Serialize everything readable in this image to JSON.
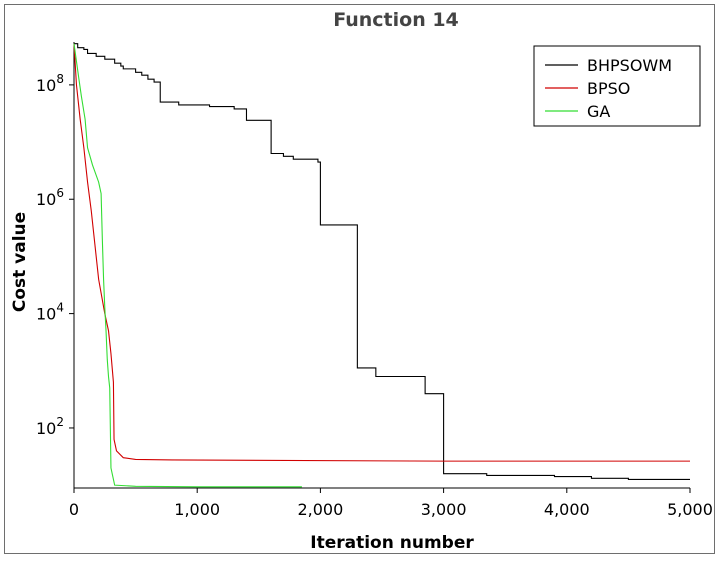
{
  "chart_data": {
    "type": "line",
    "title": "Function 14",
    "xlabel": "Iteration number",
    "ylabel": "Cost value",
    "xlim": [
      0,
      5000
    ],
    "ylim_log10": [
      0.95,
      8.75
    ],
    "yscale": "log",
    "grid": false,
    "legend_position": "top-right",
    "x_ticks": [
      {
        "value": 0,
        "label": "0"
      },
      {
        "value": 1000,
        "label": "1,000"
      },
      {
        "value": 2000,
        "label": "2,000"
      },
      {
        "value": 3000,
        "label": "3,000"
      },
      {
        "value": 4000,
        "label": "4,000"
      },
      {
        "value": 5000,
        "label": "5,000"
      }
    ],
    "y_ticks": [
      {
        "exponent": 2,
        "base": "10",
        "sup": "2"
      },
      {
        "exponent": 4,
        "base": "10",
        "sup": "4"
      },
      {
        "exponent": 6,
        "base": "10",
        "sup": "6"
      },
      {
        "exponent": 8,
        "base": "10",
        "sup": "8"
      }
    ],
    "series": [
      {
        "name": "BHPSOWM",
        "color": "#000000",
        "step": true,
        "points": [
          [
            0,
            8.72
          ],
          [
            30,
            8.65
          ],
          [
            80,
            8.62
          ],
          [
            110,
            8.55
          ],
          [
            180,
            8.5
          ],
          [
            250,
            8.45
          ],
          [
            330,
            8.38
          ],
          [
            380,
            8.33
          ],
          [
            400,
            8.28
          ],
          [
            500,
            8.22
          ],
          [
            550,
            8.17
          ],
          [
            600,
            8.1
          ],
          [
            650,
            8.05
          ],
          [
            700,
            7.7
          ],
          [
            850,
            7.65
          ],
          [
            1100,
            7.62
          ],
          [
            1300,
            7.58
          ],
          [
            1400,
            7.38
          ],
          [
            1550,
            7.38
          ],
          [
            1600,
            6.8
          ],
          [
            1700,
            6.75
          ],
          [
            1780,
            6.7
          ],
          [
            1980,
            6.65
          ],
          [
            2000,
            5.55
          ],
          [
            2300,
            5.55
          ],
          [
            2300,
            3.05
          ],
          [
            2450,
            2.9
          ],
          [
            2800,
            2.9
          ],
          [
            2850,
            2.6
          ],
          [
            3000,
            2.6
          ],
          [
            3000,
            1.2
          ],
          [
            3200,
            1.2
          ],
          [
            3350,
            1.17
          ],
          [
            3900,
            1.15
          ],
          [
            4200,
            1.12
          ],
          [
            4500,
            1.1
          ],
          [
            5000,
            1.1
          ]
        ]
      },
      {
        "name": "BPSO",
        "color": "#d10000",
        "step": false,
        "points": [
          [
            0,
            8.72
          ],
          [
            20,
            8.0
          ],
          [
            50,
            7.4
          ],
          [
            80,
            6.9
          ],
          [
            110,
            6.3
          ],
          [
            140,
            5.8
          ],
          [
            170,
            5.2
          ],
          [
            200,
            4.6
          ],
          [
            250,
            4.0
          ],
          [
            280,
            3.7
          ],
          [
            300,
            3.3
          ],
          [
            310,
            3.05
          ],
          [
            320,
            2.8
          ],
          [
            325,
            1.8
          ],
          [
            345,
            1.6
          ],
          [
            400,
            1.48
          ],
          [
            500,
            1.45
          ],
          [
            800,
            1.44
          ],
          [
            3000,
            1.42
          ],
          [
            5000,
            1.42
          ]
        ]
      },
      {
        "name": "GA",
        "color": "#33dd33",
        "step": false,
        "points": [
          [
            0,
            8.72
          ],
          [
            40,
            8.1
          ],
          [
            60,
            7.8
          ],
          [
            90,
            7.4
          ],
          [
            100,
            7.15
          ],
          [
            110,
            6.9
          ],
          [
            150,
            6.6
          ],
          [
            200,
            6.3
          ],
          [
            220,
            6.1
          ],
          [
            230,
            5.3
          ],
          [
            240,
            4.6
          ],
          [
            250,
            4.1
          ],
          [
            260,
            3.7
          ],
          [
            270,
            3.2
          ],
          [
            280,
            2.9
          ],
          [
            290,
            2.7
          ],
          [
            300,
            1.3
          ],
          [
            330,
            1.0
          ],
          [
            500,
            0.98
          ],
          [
            1000,
            0.97
          ],
          [
            1850,
            0.97
          ]
        ]
      }
    ]
  }
}
